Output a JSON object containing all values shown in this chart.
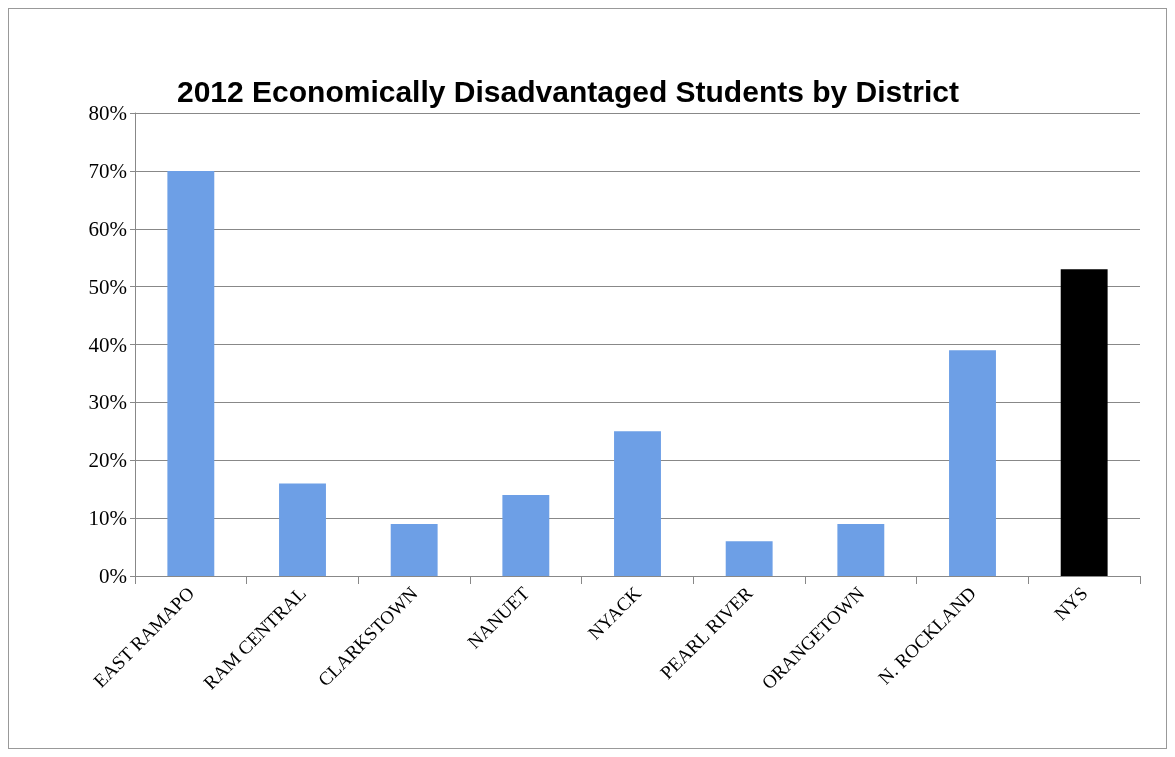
{
  "chart_data": {
    "type": "bar",
    "title": "2012 Economically Disadvantaged Students by District",
    "categories": [
      "EAST RAMAPO",
      "RAM CENTRAL",
      "CLARKSTOWN",
      "NANUET",
      "NYACK",
      "PEARL RIVER",
      "ORANGETOWN",
      "N. ROCKLAND",
      "NYS"
    ],
    "values": [
      70,
      16,
      9,
      14,
      25,
      6,
      9,
      39,
      53
    ],
    "colors": [
      "#6d9fe6",
      "#6d9fe6",
      "#6d9fe6",
      "#6d9fe6",
      "#6d9fe6",
      "#6d9fe6",
      "#6d9fe6",
      "#6d9fe6",
      "#000000"
    ],
    "ylim": [
      0,
      80
    ],
    "yticks": [
      {
        "value": 0,
        "label": "0%"
      },
      {
        "value": 10,
        "label": "10%"
      },
      {
        "value": 20,
        "label": "20%"
      },
      {
        "value": 30,
        "label": "30%"
      },
      {
        "value": 40,
        "label": "40%"
      },
      {
        "value": 50,
        "label": "50%"
      },
      {
        "value": 60,
        "label": "60%"
      },
      {
        "value": 70,
        "label": "70%"
      },
      {
        "value": 80,
        "label": "80%"
      }
    ],
    "grid": "y"
  }
}
